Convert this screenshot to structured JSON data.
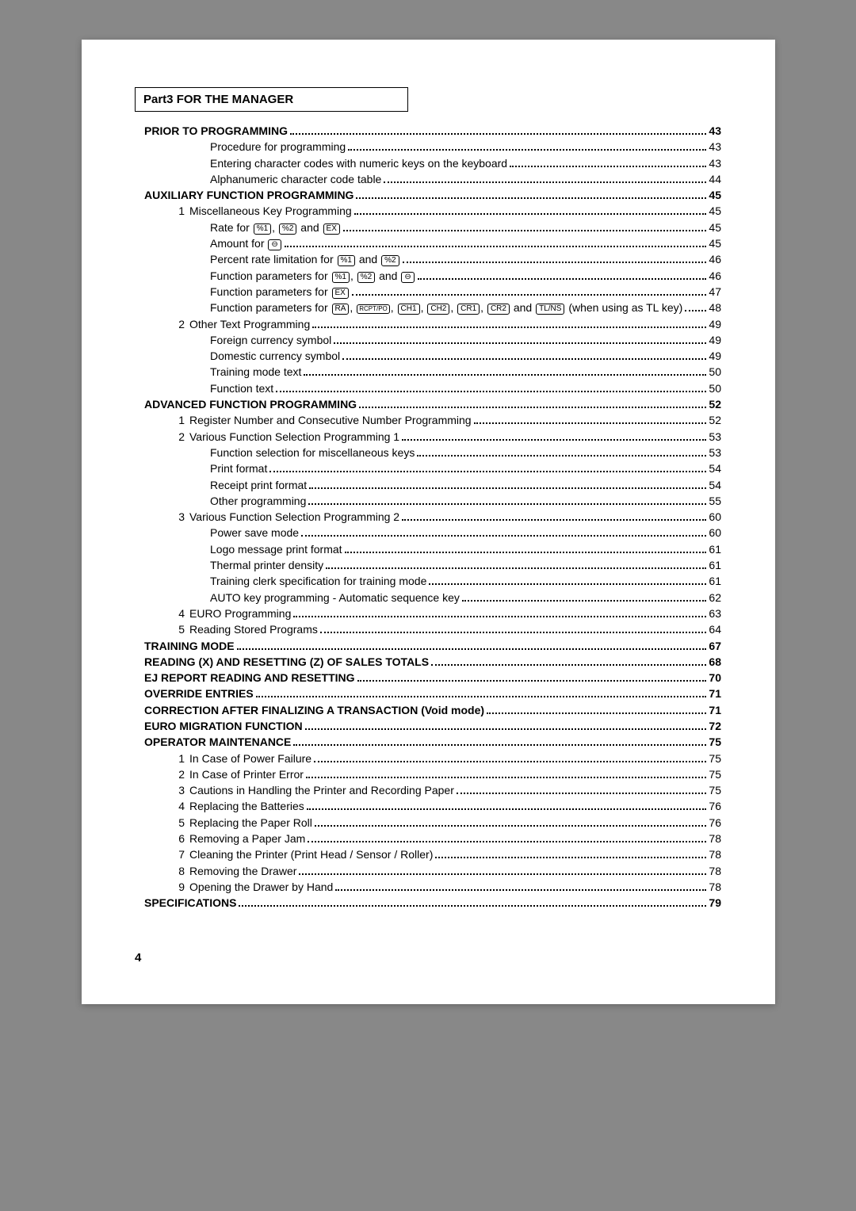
{
  "part_title": "Part3  FOR THE MANAGER",
  "page_number": "4",
  "entries": [
    {
      "level": 0,
      "bold": true,
      "num": "",
      "text": "PRIOR TO PROGRAMMING",
      "page": "43"
    },
    {
      "level": 2,
      "bold": false,
      "num": "",
      "text": "Procedure for programming",
      "page": "43"
    },
    {
      "level": 2,
      "bold": false,
      "num": "",
      "text": "Entering character codes with numeric keys on the keyboard",
      "page": "43"
    },
    {
      "level": 2,
      "bold": false,
      "num": "",
      "text": "Alphanumeric character code table",
      "page": "44"
    },
    {
      "level": 0,
      "bold": true,
      "num": "",
      "text": "AUXILIARY FUNCTION PROGRAMMING",
      "page": "45"
    },
    {
      "level": 1,
      "bold": false,
      "num": "1",
      "text": "Miscellaneous Key Programming",
      "page": "45"
    },
    {
      "level": 2,
      "bold": false,
      "num": "",
      "html": "Rate for <span class=\"key\">%1</span>, <span class=\"key\">%2</span> and <span class=\"key\">EX</span>",
      "page": "45"
    },
    {
      "level": 2,
      "bold": false,
      "num": "",
      "html": "Amount for <span class=\"key\">&#8854;</span>",
      "page": "45"
    },
    {
      "level": 2,
      "bold": false,
      "num": "",
      "html": "Percent rate limitation for <span class=\"key\">%1</span> and <span class=\"key\">%2</span>",
      "page": "46"
    },
    {
      "level": 2,
      "bold": false,
      "num": "",
      "html": "Function parameters for <span class=\"key\">%1</span>, <span class=\"key\">%2</span> and <span class=\"key\">&#8854;</span>",
      "page": "46"
    },
    {
      "level": 2,
      "bold": false,
      "num": "",
      "html": "Function parameters for <span class=\"key\">EX</span>",
      "page": "47"
    },
    {
      "level": 2,
      "bold": false,
      "num": "",
      "html": "Function parameters for <span class=\"key\">RA</span>, <span class=\"key sm\">RCPT/PO</span>, <span class=\"key\">CH1</span>, <span class=\"key\">CH2</span>, <span class=\"key\">CR1</span>, <span class=\"key\">CR2</span> and <span class=\"key\">TL/NS</span> (when using as TL key)",
      "page": "48"
    },
    {
      "level": 1,
      "bold": false,
      "num": "2",
      "text": "Other Text Programming",
      "page": "49"
    },
    {
      "level": 2,
      "bold": false,
      "num": "",
      "text": "Foreign currency symbol",
      "page": "49"
    },
    {
      "level": 2,
      "bold": false,
      "num": "",
      "text": "Domestic currency symbol",
      "page": "49"
    },
    {
      "level": 2,
      "bold": false,
      "num": "",
      "text": "Training mode text",
      "page": "50"
    },
    {
      "level": 2,
      "bold": false,
      "num": "",
      "text": "Function text",
      "page": "50"
    },
    {
      "level": 0,
      "bold": true,
      "num": "",
      "text": "ADVANCED FUNCTION PROGRAMMING",
      "page": "52"
    },
    {
      "level": 1,
      "bold": false,
      "num": "1",
      "text": "Register Number and Consecutive Number Programming",
      "page": "52"
    },
    {
      "level": 1,
      "bold": false,
      "num": "2",
      "text": "Various Function Selection Programming 1",
      "page": "53"
    },
    {
      "level": 2,
      "bold": false,
      "num": "",
      "text": "Function selection for miscellaneous keys",
      "page": "53"
    },
    {
      "level": 2,
      "bold": false,
      "num": "",
      "text": "Print format",
      "page": "54"
    },
    {
      "level": 2,
      "bold": false,
      "num": "",
      "text": "Receipt print format",
      "page": "54"
    },
    {
      "level": 2,
      "bold": false,
      "num": "",
      "text": "Other programming",
      "page": "55"
    },
    {
      "level": 1,
      "bold": false,
      "num": "3",
      "text": "Various Function Selection Programming 2",
      "page": "60"
    },
    {
      "level": 2,
      "bold": false,
      "num": "",
      "text": "Power save mode",
      "page": "60"
    },
    {
      "level": 2,
      "bold": false,
      "num": "",
      "text": "Logo message print format",
      "page": "61"
    },
    {
      "level": 2,
      "bold": false,
      "num": "",
      "text": "Thermal printer density",
      "page": "61"
    },
    {
      "level": 2,
      "bold": false,
      "num": "",
      "text": "Training clerk specification for training mode",
      "page": "61"
    },
    {
      "level": 2,
      "bold": false,
      "num": "",
      "text": "AUTO key programming - Automatic sequence key",
      "page": "62"
    },
    {
      "level": 1,
      "bold": false,
      "num": "4",
      "text": "EURO Programming",
      "page": "63"
    },
    {
      "level": 1,
      "bold": false,
      "num": "5",
      "text": "Reading Stored Programs",
      "page": "64"
    },
    {
      "level": 0,
      "bold": true,
      "num": "",
      "text": "TRAINING MODE",
      "page": "67"
    },
    {
      "level": 0,
      "bold": true,
      "num": "",
      "text": "READING (X) AND RESETTING (Z) OF SALES TOTALS",
      "page": "68"
    },
    {
      "level": 0,
      "bold": true,
      "num": "",
      "text": "EJ REPORT READING AND RESETTING",
      "page": "70"
    },
    {
      "level": 0,
      "bold": true,
      "num": "",
      "text": "OVERRIDE ENTRIES",
      "page": "71"
    },
    {
      "level": 0,
      "bold": true,
      "num": "",
      "text": "CORRECTION AFTER FINALIZING A TRANSACTION (Void mode)",
      "page": "71"
    },
    {
      "level": 0,
      "bold": true,
      "num": "",
      "text": "EURO MIGRATION FUNCTION",
      "page": "72"
    },
    {
      "level": 0,
      "bold": true,
      "num": "",
      "text": "OPERATOR MAINTENANCE",
      "page": "75"
    },
    {
      "level": 1,
      "bold": false,
      "num": "1",
      "text": "In Case of Power Failure",
      "page": "75"
    },
    {
      "level": 1,
      "bold": false,
      "num": "2",
      "text": "In Case of Printer Error",
      "page": "75"
    },
    {
      "level": 1,
      "bold": false,
      "num": "3",
      "text": "Cautions in Handling the Printer and Recording Paper",
      "page": "75"
    },
    {
      "level": 1,
      "bold": false,
      "num": "4",
      "text": "Replacing the Batteries",
      "page": "76"
    },
    {
      "level": 1,
      "bold": false,
      "num": "5",
      "text": "Replacing the Paper Roll",
      "page": "76"
    },
    {
      "level": 1,
      "bold": false,
      "num": "6",
      "text": "Removing a Paper Jam",
      "page": "78"
    },
    {
      "level": 1,
      "bold": false,
      "num": "7",
      "text": "Cleaning the Printer (Print Head / Sensor / Roller)",
      "page": "78"
    },
    {
      "level": 1,
      "bold": false,
      "num": "8",
      "text": "Removing the Drawer",
      "page": "78"
    },
    {
      "level": 1,
      "bold": false,
      "num": "9",
      "text": "Opening the Drawer by Hand",
      "page": "78"
    },
    {
      "level": 0,
      "bold": true,
      "num": "",
      "text": "SPECIFICATIONS",
      "page": "79"
    }
  ]
}
